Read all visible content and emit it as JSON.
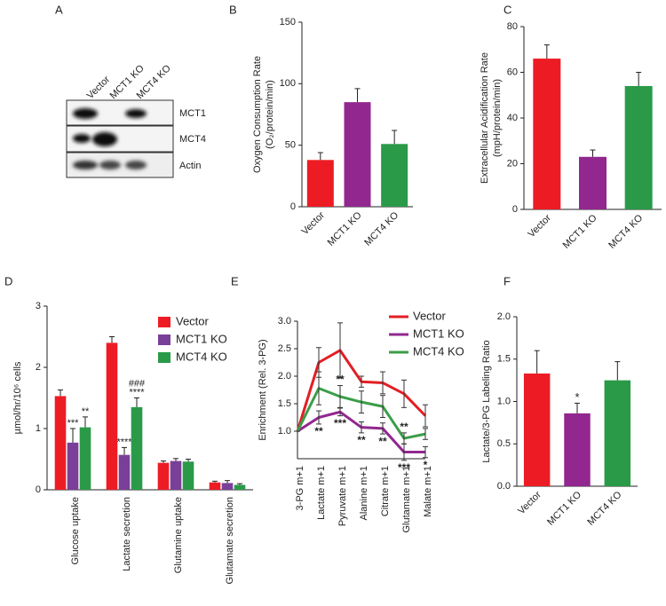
{
  "blot": {
    "panel": "A",
    "lanes": [
      "Vector",
      "MCT1 KO",
      "MCT4 KO"
    ],
    "rows": [
      "MCT1",
      "MCT4",
      "Actin"
    ]
  },
  "chart_data": [
    {
      "type": "bar",
      "panel": "B",
      "ylabel": [
        "Oxygen Consumption Rate",
        "(O₂/protein/min)"
      ],
      "categories": [
        "Vector",
        "MCT1 KO",
        "MCT4 KO"
      ],
      "values": [
        38,
        85,
        51
      ],
      "errors": [
        6,
        11,
        11
      ],
      "colors": [
        "#ed1c24",
        "#92278f",
        "#2a9a48"
      ],
      "ylim": [
        0,
        150
      ],
      "yticks": [
        0,
        50,
        100,
        150
      ]
    },
    {
      "type": "bar",
      "panel": "C",
      "ylabel": [
        "Extracellular Acidification Rate",
        "(mpH/protein/min)"
      ],
      "categories": [
        "Vector",
        "MCT1 KO",
        "MCT4 KO"
      ],
      "values": [
        66,
        23,
        54
      ],
      "errors": [
        6,
        3,
        6
      ],
      "colors": [
        "#ed1c24",
        "#92278f",
        "#2a9a48"
      ],
      "ylim": [
        0,
        80
      ],
      "yticks": [
        0,
        20,
        40,
        60,
        80
      ]
    },
    {
      "type": "bar",
      "panel": "D",
      "ylabel": [
        "µmol/hr/10⁶ cells"
      ],
      "categories": [
        "Glucose uptake",
        "Lactate secretion",
        "Glutamine uptake",
        "Glutamate secretion"
      ],
      "series": [
        {
          "name": "Vector",
          "color": "#ed1c24",
          "values": [
            1.53,
            2.4,
            0.44,
            0.12
          ],
          "errors": [
            0.1,
            0.1,
            0.03,
            0.02
          ]
        },
        {
          "name": "MCT1 KO",
          "color": "#7a3f98",
          "values": [
            0.77,
            0.57,
            0.47,
            0.11
          ],
          "errors": [
            0.23,
            0.12,
            0.04,
            0.04
          ],
          "marks": [
            "***",
            "****",
            null,
            null
          ]
        },
        {
          "name": "MCT4 KO",
          "color": "#2a9a48",
          "values": [
            1.02,
            1.35,
            0.46,
            0.08
          ],
          "errors": [
            0.17,
            0.15,
            0.04,
            0.02
          ],
          "marks": [
            "**",
            "****",
            null,
            null
          ],
          "marks2": [
            null,
            "###",
            null,
            null
          ]
        }
      ],
      "ylim": [
        0,
        3
      ],
      "yticks": [
        0,
        1,
        2,
        3
      ],
      "legend": "upper right"
    },
    {
      "type": "line",
      "panel": "E",
      "ylabel": [
        "Enrichment (Rel. 3-PG)"
      ],
      "categories": [
        "3-PG m+1",
        "Lactate m+1",
        "Pyruvate m+1",
        "Alanine m+1",
        "Citrate m+1",
        "Glutamate m+1",
        "Malate m+1"
      ],
      "series": [
        {
          "name": "Vector",
          "color": "#e31e24",
          "values": [
            1.0,
            2.25,
            2.47,
            1.9,
            1.88,
            1.68,
            1.28
          ],
          "errors": [
            0,
            0.27,
            0.5,
            0.1,
            0.2,
            0.25,
            0.2
          ]
        },
        {
          "name": "MCT1 KO",
          "color": "#92278f",
          "values": [
            1.0,
            1.25,
            1.35,
            1.07,
            1.05,
            0.62,
            0.62
          ],
          "errors": [
            0,
            0.12,
            0.07,
            0.1,
            0.1,
            0.15,
            0.1
          ],
          "marks": [
            null,
            "**",
            "***",
            "**",
            "**",
            "***",
            "*"
          ]
        },
        {
          "name": "MCT4 KO",
          "color": "#3a9e48",
          "values": [
            1.0,
            1.78,
            1.63,
            1.53,
            1.45,
            0.87,
            0.95
          ],
          "errors": [
            0,
            0.3,
            0.2,
            0.2,
            0.2,
            0.1,
            0.1
          ],
          "marks": [
            null,
            null,
            "**",
            null,
            null,
            "**",
            null
          ]
        }
      ],
      "ylim": [
        0.5,
        3.0
      ],
      "yticks": [
        {
          "value": 1,
          "label": "1.0"
        },
        {
          "value": 1.5,
          "label": "1.5"
        },
        {
          "value": 2,
          "label": "2.0"
        },
        {
          "value": 2.5,
          "label": "2.5"
        },
        {
          "value": 3,
          "label": "3.0"
        }
      ],
      "legend": "upper right"
    },
    {
      "type": "bar",
      "panel": "F",
      "ylabel": [
        "Lactate/3-PG Labeling Ratio"
      ],
      "categories": [
        "Vector",
        "MCT1 KO",
        "MCT4 KO"
      ],
      "values": [
        1.33,
        0.86,
        1.25
      ],
      "errors": [
        0.27,
        0.12,
        0.22
      ],
      "colors": [
        "#ed1c24",
        "#92278f",
        "#2a9a48"
      ],
      "marks": [
        null,
        "*",
        null
      ],
      "ylim": [
        0,
        2
      ],
      "yticks": [
        {
          "value": 0,
          "label": "0.0"
        },
        {
          "value": 0.5,
          "label": "0.5"
        },
        {
          "value": 1,
          "label": "1.0"
        },
        {
          "value": 1.5,
          "label": "1.5"
        },
        {
          "value": 2,
          "label": "2.0"
        }
      ]
    }
  ]
}
